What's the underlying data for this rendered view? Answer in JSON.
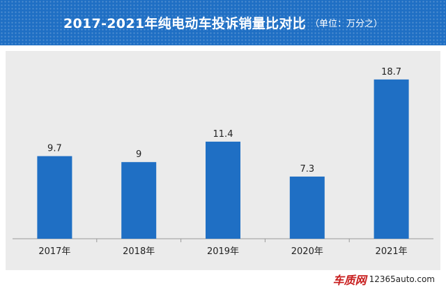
{
  "header": {
    "title": "2017-2021年纯电动车投诉销量比对比",
    "unit": "（单位：万分之）"
  },
  "chart_data": {
    "type": "bar",
    "title": "2017-2021年纯电动车投诉销量比对比",
    "subtitle": "（单位：万分之）",
    "categories": [
      "2017年",
      "2018年",
      "2019年",
      "2020年",
      "2021年"
    ],
    "values": [
      9.7,
      9,
      11.4,
      7.3,
      18.7
    ],
    "value_labels": [
      "9.7",
      "9",
      "11.4",
      "7.3",
      "18.7"
    ],
    "xlabel": "",
    "ylabel": "",
    "ylim": [
      0,
      20
    ],
    "grid": false,
    "legend": "none",
    "bar_color": "#1f6fc4"
  },
  "colors": {
    "header_bg": "#1f6fc4",
    "panel_bg": "#ebebeb",
    "bar": "#1f6fc4",
    "axis": "#9a9a9a",
    "text": "#222222",
    "watermark_red": "#c81e1e"
  },
  "watermark": {
    "logo": "车质网",
    "site": "12365auto.com"
  }
}
